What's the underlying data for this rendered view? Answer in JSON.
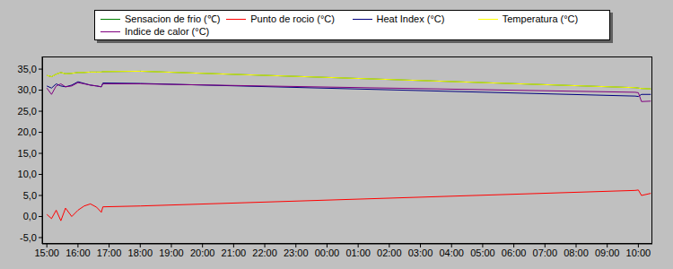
{
  "chart_data": {
    "type": "line",
    "legend": "top",
    "grid": false,
    "x": [
      0,
      0.15,
      0.3,
      0.45,
      0.6,
      0.8,
      1.0,
      1.2,
      1.4,
      1.6,
      1.75,
      1.8,
      3.0,
      18.9,
      19.0,
      19.1,
      19.4
    ],
    "xlim": [
      -0.15,
      19.45
    ],
    "xticks": [
      {
        "value": 0,
        "label": "15:00"
      },
      {
        "value": 1,
        "label": "16:00"
      },
      {
        "value": 2,
        "label": "17:00"
      },
      {
        "value": 3,
        "label": "18:00"
      },
      {
        "value": 4,
        "label": "19:00"
      },
      {
        "value": 5,
        "label": "20:00"
      },
      {
        "value": 6,
        "label": "21:00"
      },
      {
        "value": 7,
        "label": "22:00"
      },
      {
        "value": 8,
        "label": "23:00"
      },
      {
        "value": 9,
        "label": "00:00"
      },
      {
        "value": 10,
        "label": "01:00"
      },
      {
        "value": 11,
        "label": "02:00"
      },
      {
        "value": 12,
        "label": "03:00"
      },
      {
        "value": 13,
        "label": "04:00"
      },
      {
        "value": 14,
        "label": "05:00"
      },
      {
        "value": 15,
        "label": "06:00"
      },
      {
        "value": 16,
        "label": "07:00"
      },
      {
        "value": 17,
        "label": "08:00"
      },
      {
        "value": 18,
        "label": "09:00"
      },
      {
        "value": 19,
        "label": "10:00"
      }
    ],
    "ylim": [
      -6.5,
      38
    ],
    "yticks": [
      {
        "value": -5,
        "label": "-5,0"
      },
      {
        "value": 0,
        "label": "0,0"
      },
      {
        "value": 5,
        "label": "5,0"
      },
      {
        "value": 10,
        "label": "10,0"
      },
      {
        "value": 15,
        "label": "15,0"
      },
      {
        "value": 20,
        "label": "20,0"
      },
      {
        "value": 25,
        "label": "25,0"
      },
      {
        "value": 30,
        "label": "30,0"
      },
      {
        "value": 35,
        "label": "35,0"
      }
    ],
    "series": [
      {
        "name": "Sensacion de frio (℃)",
        "color": "#008000",
        "values": [
          33.5,
          33.2,
          33.8,
          34.2,
          33.9,
          34.0,
          34.2,
          34.2,
          34.3,
          34.3,
          34.3,
          34.4,
          34.5,
          30.6,
          30.5,
          30.4,
          30.3
        ]
      },
      {
        "name": "Punto de rocio (°C)",
        "color": "#ff0000",
        "values": [
          0.5,
          -0.5,
          1.5,
          -1.0,
          2.0,
          0.0,
          1.5,
          2.5,
          3.0,
          2.2,
          1.0,
          2.3,
          2.5,
          6.2,
          6.3,
          5.0,
          5.5
        ]
      },
      {
        "name": "Heat Index (°C)",
        "color": "#000080",
        "values": [
          31.0,
          30.5,
          31.5,
          31.0,
          30.8,
          31.2,
          32.0,
          31.6,
          31.2,
          31.0,
          30.8,
          31.7,
          31.6,
          28.6,
          28.5,
          29.0,
          29.0
        ]
      },
      {
        "name": "Temperatura (°C)",
        "color": "#ffff00",
        "values": [
          33.5,
          33.2,
          33.8,
          34.2,
          33.9,
          34.0,
          34.2,
          34.2,
          34.3,
          34.3,
          34.3,
          34.4,
          34.5,
          30.6,
          30.5,
          30.4,
          30.3
        ]
      },
      {
        "name": "Indice de calor (°C)",
        "color": "#800080",
        "values": [
          30.5,
          29.0,
          31.0,
          31.5,
          30.8,
          31.0,
          31.8,
          31.5,
          31.2,
          31.0,
          30.8,
          31.5,
          31.5,
          29.5,
          29.4,
          27.3,
          27.4
        ]
      }
    ]
  }
}
